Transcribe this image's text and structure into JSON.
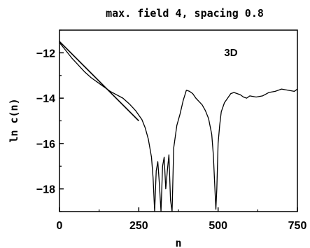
{
  "chart_data": {
    "type": "line",
    "title": "max. field 4, spacing 0.8",
    "xlabel": "n",
    "ylabel": "ln c(n)",
    "xlim": [
      0,
      750
    ],
    "ylim": [
      -19,
      -11
    ],
    "xticks": [
      0,
      250,
      500,
      750
    ],
    "yticks": [
      -12,
      -14,
      -16,
      -18
    ],
    "annotation": "3D",
    "grid": false,
    "legend": "none",
    "series": [
      {
        "x": [
          0,
          20,
          40,
          60,
          80,
          100,
          120,
          140,
          160,
          180,
          200,
          220,
          240,
          260,
          270,
          280,
          290,
          295,
          300,
          305,
          310,
          315,
          320,
          325,
          330,
          335,
          340,
          345,
          350,
          355,
          360,
          370,
          380,
          390,
          400,
          410,
          420,
          430,
          440,
          450,
          460,
          470,
          480,
          485,
          490,
          493,
          496,
          500,
          505,
          510,
          520,
          530,
          540,
          550,
          560,
          570,
          580,
          590,
          600,
          620,
          640,
          660,
          680,
          700,
          720,
          740,
          750
        ],
        "y": [
          -11.55,
          -11.9,
          -12.25,
          -12.55,
          -12.85,
          -13.1,
          -13.3,
          -13.5,
          -13.7,
          -13.85,
          -14.0,
          -14.25,
          -14.55,
          -14.95,
          -15.3,
          -15.8,
          -16.6,
          -17.5,
          -19.0,
          -17.2,
          -16.8,
          -17.8,
          -19.0,
          -17.0,
          -16.6,
          -18.0,
          -17.2,
          -16.5,
          -18.5,
          -19.0,
          -16.2,
          -15.2,
          -14.7,
          -14.1,
          -13.65,
          -13.7,
          -13.8,
          -14.0,
          -14.15,
          -14.3,
          -14.55,
          -14.9,
          -15.6,
          -16.5,
          -18.0,
          -18.9,
          -18.0,
          -16.0,
          -15.2,
          -14.6,
          -14.2,
          -14.0,
          -13.8,
          -13.75,
          -13.8,
          -13.85,
          -13.95,
          -14.0,
          -13.9,
          -13.95,
          -13.9,
          -13.75,
          -13.7,
          -13.6,
          -13.65,
          -13.7,
          -13.6
        ]
      },
      {
        "x": [
          0,
          250
        ],
        "y": [
          -11.5,
          -15.0
        ]
      }
    ]
  }
}
